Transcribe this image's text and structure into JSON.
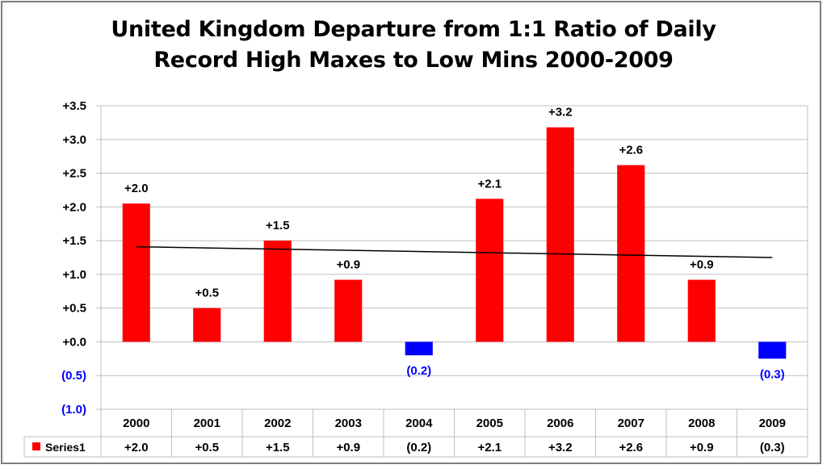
{
  "chart_data": {
    "type": "bar",
    "title_line1": "United Kingdom Departure from 1:1 Ratio of Daily",
    "title_line2": "Record High Maxes to Low Mins 2000-2009",
    "categories": [
      "2000",
      "2001",
      "2002",
      "2003",
      "2004",
      "2005",
      "2006",
      "2007",
      "2008",
      "2009"
    ],
    "series": [
      {
        "name": "Series1",
        "values": [
          2.05,
          0.5,
          1.5,
          0.92,
          -0.2,
          2.12,
          3.18,
          2.62,
          0.92,
          -0.25
        ],
        "data_labels": [
          "+2.0",
          "+0.5",
          "+1.5",
          "+0.9",
          "(0.2)",
          "+2.1",
          "+3.2",
          "+2.6",
          "+0.9",
          "(0.3)"
        ],
        "table_labels": [
          "+2.0",
          "+0.5",
          "+1.5",
          "+0.9",
          "(0.2)",
          "+2.1",
          "+3.2",
          "+2.6",
          "+0.9",
          "(0.3)"
        ]
      }
    ],
    "yticks": [
      -1.0,
      -0.5,
      0.0,
      0.5,
      1.0,
      1.5,
      2.0,
      2.5,
      3.0,
      3.5
    ],
    "ytick_labels": [
      "(1.0)",
      "(0.5)",
      "+0.0",
      "+0.5",
      "+1.0",
      "+1.5",
      "+2.0",
      "+2.5",
      "+3.0",
      "+3.5"
    ],
    "ylim": [
      -1.0,
      3.5
    ],
    "trendline": {
      "type": "linear",
      "start": 1.41,
      "end": 1.25
    },
    "grid": true,
    "data_table": true,
    "colors": {
      "positive": "#ff0000",
      "negative": "#0000ff",
      "trend": "#000000",
      "grid": "#bfbfbf",
      "negative_label": "#0000ff"
    }
  }
}
